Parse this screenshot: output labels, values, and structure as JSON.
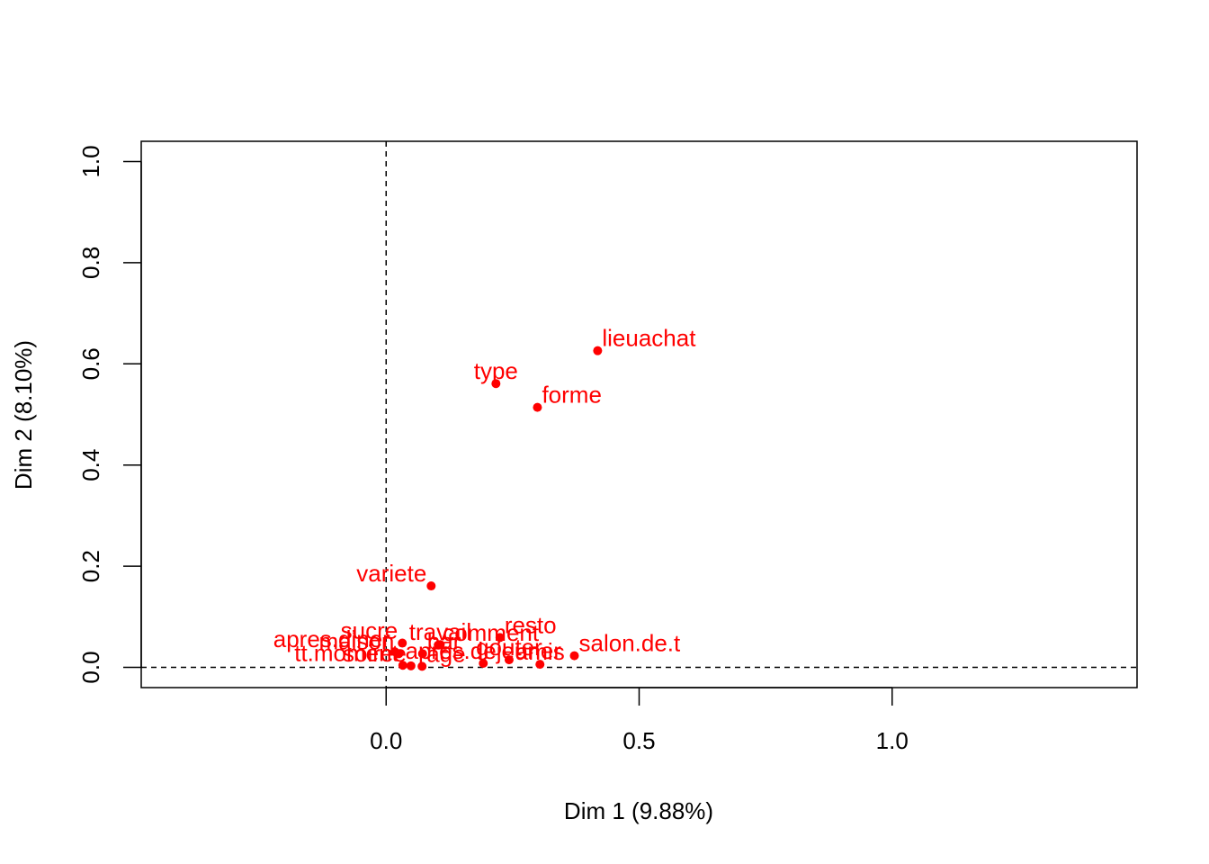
{
  "chart_data": {
    "type": "scatter",
    "xlabel": "Dim 1 (9.88%)",
    "ylabel": "Dim 2 (8.10%)",
    "xlim": [
      -0.484,
      1.484
    ],
    "ylim": [
      -0.04,
      1.04
    ],
    "x_ticks": [
      {
        "value": 0.0,
        "label": "0.0"
      },
      {
        "value": 0.5,
        "label": "0.5"
      },
      {
        "value": 1.0,
        "label": "1.0"
      }
    ],
    "y_ticks": [
      {
        "value": 0.0,
        "label": "0.0"
      },
      {
        "value": 0.2,
        "label": "0.2"
      },
      {
        "value": 0.4,
        "label": "0.4"
      },
      {
        "value": 0.6,
        "label": "0.6"
      },
      {
        "value": 0.8,
        "label": "0.8"
      },
      {
        "value": 1.0,
        "label": "1.0"
      }
    ],
    "reference_lines": {
      "x": 0,
      "y": 0,
      "style": "dashed"
    },
    "point_color": "#ff0000",
    "points": [
      {
        "label": "lieuachat",
        "x": 0.418,
        "y": 0.626,
        "anchor": "start"
      },
      {
        "label": "type",
        "x": 0.217,
        "y": 0.561,
        "anchor": "middle"
      },
      {
        "label": "forme",
        "x": 0.299,
        "y": 0.514,
        "anchor": "start"
      },
      {
        "label": "variete",
        "x": 0.089,
        "y": 0.161,
        "anchor": "end"
      },
      {
        "label": "apres.diner",
        "x": 0.017,
        "y": 0.031,
        "anchor": "end"
      },
      {
        "label": "sucre",
        "x": 0.032,
        "y": 0.048,
        "anchor": "end"
      },
      {
        "label": "travail",
        "x": 0.107,
        "y": 0.045,
        "anchor": "middle"
      },
      {
        "label": "comment",
        "x": 0.103,
        "y": 0.044,
        "anchor": "start"
      },
      {
        "label": "resto",
        "x": 0.225,
        "y": 0.059,
        "anchor": "start"
      },
      {
        "label": "maison",
        "x": 0.025,
        "y": 0.027,
        "anchor": "end"
      },
      {
        "label": "bar",
        "x": 0.072,
        "y": 0.027,
        "anchor": "start"
      },
      {
        "label": "gouter",
        "x": 0.243,
        "y": 0.015,
        "anchor": "middle"
      },
      {
        "label": "salon.de.t",
        "x": 0.372,
        "y": 0.023,
        "anchor": "start"
      },
      {
        "label": "tt.moment",
        "x": 0.033,
        "y": 0.004,
        "anchor": "end"
      },
      {
        "label": "soiree",
        "x": 0.049,
        "y": 0.003,
        "anchor": "end"
      },
      {
        "label": "age",
        "x": 0.071,
        "y": 0.002,
        "anchor": "start"
      },
      {
        "label": "apres.dejeuner",
        "x": 0.192,
        "y": 0.008,
        "anchor": "middle"
      },
      {
        "label": "amis",
        "x": 0.304,
        "y": 0.006,
        "anchor": "middle"
      }
    ]
  }
}
